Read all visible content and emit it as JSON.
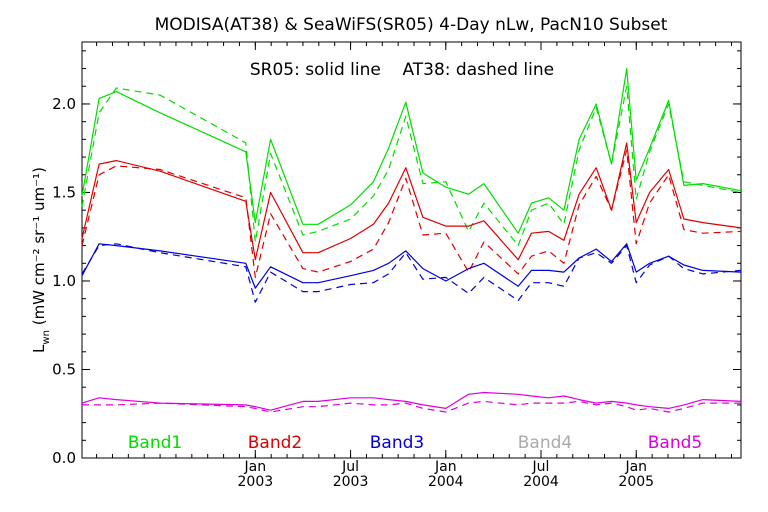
{
  "chart_data": {
    "type": "line",
    "title": "MODISA(AT38) & SeaWiFS(SR05) 4-Day nLw, PacN10 Subset",
    "subtitle": "SR05: solid line    AT38: dashed line",
    "ylabel_main": "L",
    "ylabel_sub": "wn",
    "ylabel_units": " (mW cm⁻² sr⁻¹ um⁻¹)",
    "ylim": [
      0.0,
      2.35
    ],
    "y_ticks": [
      {
        "value": 0.0,
        "label": "0.0"
      },
      {
        "value": 0.5,
        "label": "0.5"
      },
      {
        "value": 1.0,
        "label": "1.0"
      },
      {
        "value": 1.5,
        "label": "1.5"
      },
      {
        "value": 2.0,
        "label": "2.0"
      }
    ],
    "xlim": [
      2002.09,
      2005.55
    ],
    "x_ticks": [
      {
        "value": 2003.0,
        "line1": "Jan",
        "line2": "2003"
      },
      {
        "value": 2003.5,
        "line1": "Jul",
        "line2": "2003"
      },
      {
        "value": 2004.0,
        "line1": "Jan",
        "line2": "2004"
      },
      {
        "value": 2004.5,
        "line1": "Jul",
        "line2": "2004"
      },
      {
        "value": 2005.0,
        "line1": "Jan",
        "line2": "2005"
      }
    ],
    "legend": [
      {
        "label": "Band1",
        "color": "#00dd00"
      },
      {
        "label": "Band2",
        "color": "#dd0000"
      },
      {
        "label": "Band3",
        "color": "#0000dd"
      },
      {
        "label": "Band4",
        "color": "#aaaaaa"
      },
      {
        "label": "Band5",
        "color": "#dd00dd"
      }
    ],
    "series": [
      {
        "band": "Band1",
        "style": "solid",
        "color": "#00dd00",
        "x": [
          2002.09,
          2002.18,
          2002.27,
          2002.5,
          2002.95,
          2003.0,
          2003.08,
          2003.25,
          2003.33,
          2003.5,
          2003.62,
          2003.7,
          2003.79,
          2003.88,
          2004.0,
          2004.12,
          2004.2,
          2004.38,
          2004.45,
          2004.54,
          2004.62,
          2004.7,
          2004.79,
          2004.87,
          2004.95,
          2005.0,
          2005.07,
          2005.17,
          2005.25,
          2005.35,
          2005.55
        ],
        "y": [
          1.48,
          2.03,
          2.07,
          1.95,
          1.73,
          1.33,
          1.8,
          1.32,
          1.32,
          1.43,
          1.56,
          1.75,
          2.01,
          1.61,
          1.53,
          1.49,
          1.55,
          1.27,
          1.44,
          1.47,
          1.4,
          1.8,
          2.0,
          1.66,
          2.2,
          1.57,
          1.75,
          2.02,
          1.54,
          1.55,
          1.51
        ]
      },
      {
        "band": "Band1",
        "style": "dashed",
        "color": "#00dd00",
        "x": [
          2002.09,
          2002.18,
          2002.27,
          2002.5,
          2002.95,
          2003.0,
          2003.08,
          2003.25,
          2003.33,
          2003.5,
          2003.62,
          2003.7,
          2003.79,
          2003.88,
          2004.0,
          2004.12,
          2004.2,
          2004.38,
          2004.45,
          2004.54,
          2004.62,
          2004.7,
          2004.79,
          2004.87,
          2004.95,
          2005.0,
          2005.07,
          2005.17,
          2005.25,
          2005.35,
          2005.55
        ],
        "y": [
          1.42,
          1.95,
          2.09,
          2.05,
          1.78,
          1.22,
          1.72,
          1.26,
          1.28,
          1.35,
          1.48,
          1.63,
          1.93,
          1.55,
          1.56,
          1.28,
          1.44,
          1.2,
          1.4,
          1.44,
          1.32,
          1.74,
          1.98,
          1.66,
          2.1,
          1.46,
          1.73,
          2.0,
          1.56,
          1.54,
          1.5
        ]
      },
      {
        "band": "Band2",
        "style": "solid",
        "color": "#dd0000",
        "x": [
          2002.09,
          2002.18,
          2002.27,
          2002.5,
          2002.95,
          2003.0,
          2003.08,
          2003.25,
          2003.33,
          2003.5,
          2003.62,
          2003.7,
          2003.79,
          2003.88,
          2004.0,
          2004.12,
          2004.2,
          2004.38,
          2004.45,
          2004.54,
          2004.62,
          2004.7,
          2004.79,
          2004.87,
          2004.95,
          2005.0,
          2005.07,
          2005.17,
          2005.25,
          2005.35,
          2005.55
        ],
        "y": [
          1.24,
          1.66,
          1.68,
          1.62,
          1.45,
          1.12,
          1.5,
          1.16,
          1.16,
          1.24,
          1.32,
          1.44,
          1.64,
          1.36,
          1.31,
          1.31,
          1.34,
          1.12,
          1.27,
          1.28,
          1.23,
          1.49,
          1.64,
          1.4,
          1.78,
          1.33,
          1.5,
          1.63,
          1.35,
          1.33,
          1.3
        ]
      },
      {
        "band": "Band2",
        "style": "dashed",
        "color": "#dd0000",
        "x": [
          2002.09,
          2002.18,
          2002.27,
          2002.5,
          2002.95,
          2003.0,
          2003.08,
          2003.25,
          2003.33,
          2003.5,
          2003.62,
          2003.7,
          2003.79,
          2003.88,
          2004.0,
          2004.12,
          2004.2,
          2004.38,
          2004.45,
          2004.54,
          2004.62,
          2004.7,
          2004.79,
          2004.87,
          2004.95,
          2005.0,
          2005.07,
          2005.17,
          2005.25,
          2005.35,
          2005.55
        ],
        "y": [
          1.2,
          1.6,
          1.65,
          1.63,
          1.47,
          1.02,
          1.38,
          1.07,
          1.05,
          1.11,
          1.18,
          1.33,
          1.58,
          1.26,
          1.27,
          1.05,
          1.22,
          1.04,
          1.14,
          1.17,
          1.1,
          1.43,
          1.59,
          1.4,
          1.74,
          1.21,
          1.44,
          1.6,
          1.29,
          1.27,
          1.28
        ]
      },
      {
        "band": "Band3",
        "style": "solid",
        "color": "#0000dd",
        "x": [
          2002.09,
          2002.18,
          2002.27,
          2002.5,
          2002.95,
          2003.0,
          2003.08,
          2003.25,
          2003.33,
          2003.5,
          2003.62,
          2003.7,
          2003.79,
          2003.88,
          2004.0,
          2004.12,
          2004.2,
          2004.38,
          2004.45,
          2004.54,
          2004.62,
          2004.7,
          2004.79,
          2004.87,
          2004.95,
          2005.0,
          2005.07,
          2005.17,
          2005.25,
          2005.35,
          2005.55
        ],
        "y": [
          1.03,
          1.21,
          1.2,
          1.17,
          1.1,
          0.96,
          1.08,
          0.99,
          0.99,
          1.03,
          1.06,
          1.1,
          1.17,
          1.07,
          1.0,
          1.07,
          1.1,
          0.97,
          1.06,
          1.06,
          1.05,
          1.13,
          1.18,
          1.11,
          1.21,
          1.05,
          1.1,
          1.14,
          1.09,
          1.06,
          1.05
        ]
      },
      {
        "band": "Band3",
        "style": "dashed",
        "color": "#0000dd",
        "x": [
          2002.09,
          2002.18,
          2002.27,
          2002.5,
          2002.95,
          2003.0,
          2003.08,
          2003.25,
          2003.33,
          2003.5,
          2003.62,
          2003.7,
          2003.79,
          2003.88,
          2004.0,
          2004.12,
          2004.2,
          2004.38,
          2004.45,
          2004.54,
          2004.62,
          2004.7,
          2004.79,
          2004.87,
          2004.95,
          2005.0,
          2005.07,
          2005.17,
          2005.25,
          2005.35,
          2005.55
        ],
        "y": [
          1.04,
          1.2,
          1.21,
          1.16,
          1.08,
          0.88,
          1.05,
          0.94,
          0.94,
          0.98,
          0.99,
          1.04,
          1.16,
          1.01,
          1.02,
          0.93,
          1.02,
          0.89,
          0.99,
          0.99,
          0.97,
          1.13,
          1.16,
          1.1,
          1.2,
          0.99,
          1.09,
          1.14,
          1.07,
          1.04,
          1.06
        ]
      },
      {
        "band": "Band5",
        "style": "solid",
        "color": "#dd00dd",
        "x": [
          2002.09,
          2002.18,
          2002.27,
          2002.5,
          2002.95,
          2003.0,
          2003.08,
          2003.25,
          2003.33,
          2003.5,
          2003.62,
          2003.7,
          2003.79,
          2003.88,
          2004.0,
          2004.12,
          2004.2,
          2004.38,
          2004.45,
          2004.54,
          2004.62,
          2004.7,
          2004.79,
          2004.87,
          2004.95,
          2005.0,
          2005.07,
          2005.17,
          2005.25,
          2005.35,
          2005.55
        ],
        "y": [
          0.31,
          0.34,
          0.33,
          0.31,
          0.3,
          0.29,
          0.27,
          0.32,
          0.32,
          0.34,
          0.34,
          0.33,
          0.32,
          0.3,
          0.28,
          0.36,
          0.37,
          0.36,
          0.35,
          0.34,
          0.35,
          0.33,
          0.31,
          0.32,
          0.31,
          0.3,
          0.29,
          0.28,
          0.3,
          0.33,
          0.32
        ]
      },
      {
        "band": "Band5",
        "style": "dashed",
        "color": "#dd00dd",
        "x": [
          2002.09,
          2002.18,
          2002.27,
          2002.5,
          2002.95,
          2003.0,
          2003.08,
          2003.25,
          2003.33,
          2003.5,
          2003.62,
          2003.7,
          2003.79,
          2003.88,
          2004.0,
          2004.12,
          2004.2,
          2004.38,
          2004.45,
          2004.54,
          2004.62,
          2004.7,
          2004.79,
          2004.87,
          2004.95,
          2005.0,
          2005.07,
          2005.17,
          2005.25,
          2005.35,
          2005.55
        ],
        "y": [
          0.3,
          0.3,
          0.3,
          0.31,
          0.29,
          0.28,
          0.26,
          0.29,
          0.29,
          0.31,
          0.3,
          0.3,
          0.31,
          0.28,
          0.26,
          0.31,
          0.32,
          0.3,
          0.31,
          0.31,
          0.31,
          0.32,
          0.3,
          0.31,
          0.29,
          0.27,
          0.28,
          0.26,
          0.28,
          0.31,
          0.31
        ]
      }
    ]
  }
}
